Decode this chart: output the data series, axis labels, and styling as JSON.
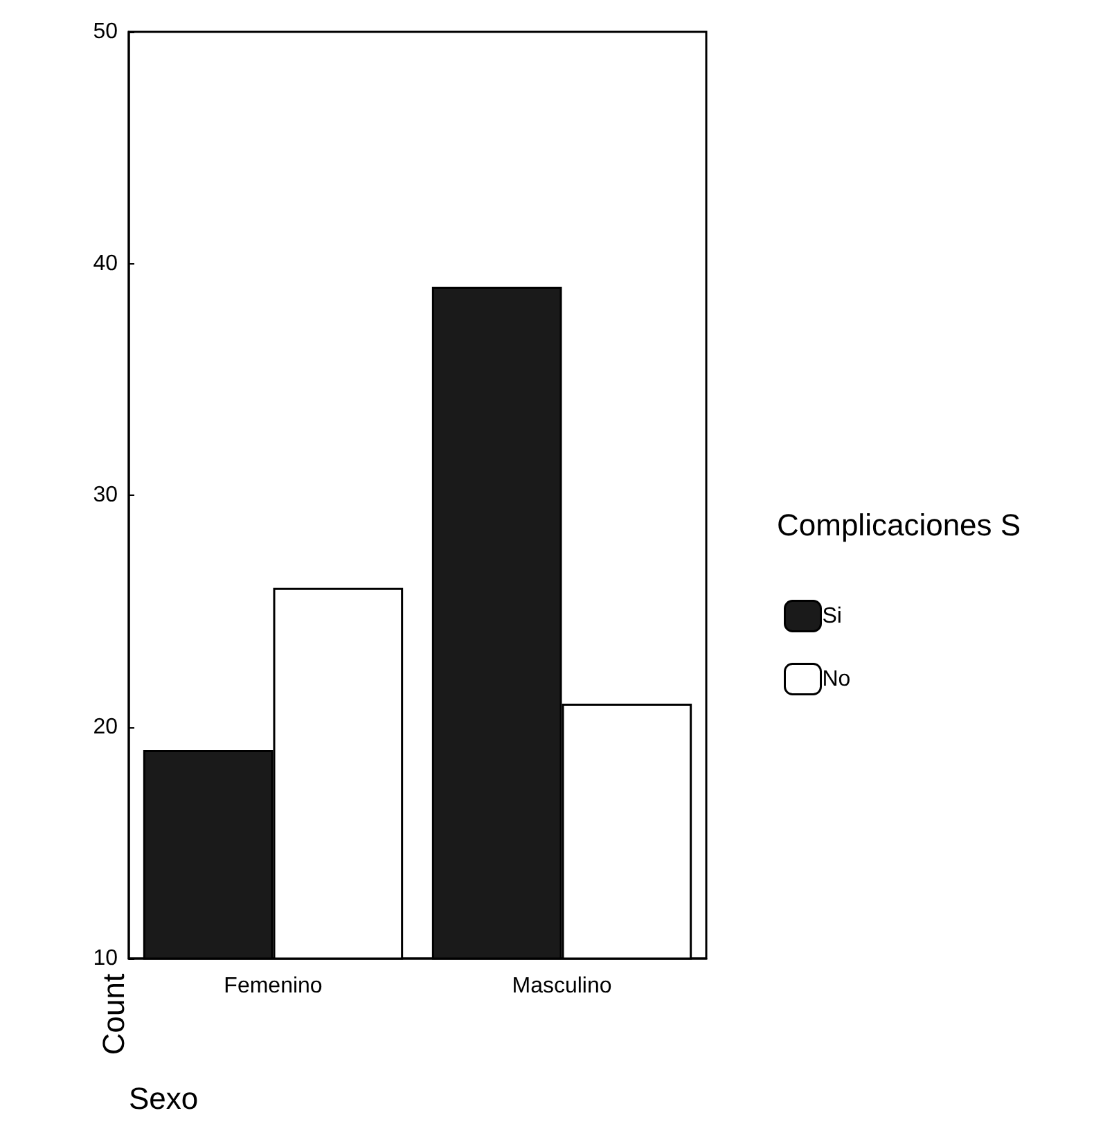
{
  "chart_data": {
    "type": "bar",
    "categories": [
      "Femenino",
      "Masculino"
    ],
    "series": [
      {
        "name": "Si",
        "color": "#1a1a1a",
        "values": [
          19,
          39
        ]
      },
      {
        "name": "No",
        "color": "#ffffff",
        "values": [
          26,
          21
        ]
      }
    ],
    "xlabel": "Sexo",
    "ylabel": "Count",
    "legend_title": "Complicaciones S",
    "ylim": [
      10,
      50
    ],
    "yticks": [
      10,
      20,
      30,
      40,
      50
    ],
    "grid": false,
    "legend": "right"
  }
}
